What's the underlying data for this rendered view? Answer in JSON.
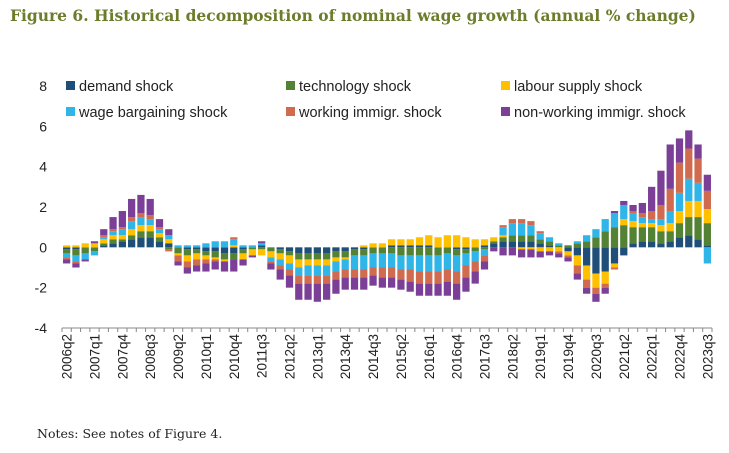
{
  "title": "Figure 6. Historical decomposition of nominal wage growth (annual % change)",
  "notes": "Notes: See notes of Figure 4.",
  "chart_data": {
    "type": "bar",
    "stacked": true,
    "ylim": [
      -4,
      8
    ],
    "y_ticks": [
      -4,
      -2,
      0,
      2,
      4,
      6,
      8
    ],
    "grid": false,
    "legend_position": "top",
    "x_tick_labels": [
      "2006q2",
      "2007q1",
      "2007q4",
      "2008q3",
      "2009q2",
      "2010q1",
      "2010q4",
      "2011q3",
      "2012q2",
      "2013q1",
      "2013q4",
      "2014q3",
      "2015q2",
      "2016q1",
      "2016q4",
      "2017q3",
      "2018q2",
      "2019q1",
      "2019q4",
      "2020q3",
      "2021q2",
      "2022q1",
      "2022q4",
      "2023q3"
    ],
    "categories": [
      "2006q2",
      "2006q3",
      "2006q4",
      "2007q1",
      "2007q2",
      "2007q3",
      "2007q4",
      "2008q1",
      "2008q2",
      "2008q3",
      "2008q4",
      "2009q1",
      "2009q2",
      "2009q3",
      "2009q4",
      "2010q1",
      "2010q2",
      "2010q3",
      "2010q4",
      "2011q1",
      "2011q2",
      "2011q3",
      "2011q4",
      "2012q1",
      "2012q2",
      "2012q3",
      "2012q4",
      "2013q1",
      "2013q2",
      "2013q3",
      "2013q4",
      "2014q1",
      "2014q2",
      "2014q3",
      "2014q4",
      "2015q1",
      "2015q2",
      "2015q3",
      "2015q4",
      "2016q1",
      "2016q2",
      "2016q3",
      "2016q4",
      "2017q1",
      "2017q2",
      "2017q3",
      "2017q4",
      "2018q1",
      "2018q2",
      "2018q3",
      "2018q4",
      "2019q1",
      "2019q2",
      "2019q3",
      "2019q4",
      "2020q1",
      "2020q2",
      "2020q3",
      "2020q4",
      "2021q1",
      "2021q2",
      "2021q3",
      "2021q4",
      "2022q1",
      "2022q2",
      "2022q3",
      "2022q4",
      "2023q1",
      "2023q2",
      "2023q3"
    ],
    "series": [
      {
        "name": "demand shock",
        "color": "#1f4e79",
        "values": [
          -0.1,
          -0.1,
          0,
          0,
          0.1,
          0.2,
          0.3,
          0.4,
          0.5,
          0.5,
          0.3,
          0.2,
          0,
          -0.1,
          -0.1,
          -0.2,
          -0.2,
          -0.3,
          -0.3,
          -0.1,
          0,
          0.1,
          0,
          -0.1,
          -0.2,
          -0.3,
          -0.3,
          -0.3,
          -0.3,
          -0.2,
          -0.2,
          -0.1,
          -0.1,
          0,
          0,
          0.1,
          0.1,
          0.1,
          0.1,
          0.1,
          0,
          0,
          -0.1,
          -0.1,
          0,
          0.1,
          0.2,
          0.3,
          0.3,
          0.3,
          0.3,
          0.2,
          0.1,
          0,
          -0.2,
          -0.4,
          -0.9,
          -1.3,
          -1.2,
          -0.8,
          -0.4,
          0.2,
          0.3,
          0.3,
          0.2,
          0.3,
          0.5,
          0.6,
          0.4,
          0.1
        ]
      },
      {
        "name": "technology shock",
        "color": "#548235",
        "values": [
          -0.2,
          -0.3,
          -0.3,
          -0.2,
          0.1,
          0.2,
          0.1,
          0.2,
          0.3,
          0.3,
          0.2,
          -0.1,
          -0.3,
          -0.3,
          -0.2,
          -0.2,
          -0.3,
          -0.3,
          -0.3,
          -0.2,
          -0.1,
          -0.1,
          -0.2,
          -0.2,
          -0.2,
          -0.3,
          -0.3,
          -0.3,
          -0.3,
          -0.3,
          -0.3,
          -0.3,
          -0.3,
          -0.3,
          -0.3,
          -0.3,
          -0.4,
          -0.4,
          -0.4,
          -0.4,
          -0.4,
          -0.3,
          -0.3,
          -0.2,
          -0.2,
          -0.1,
          0.1,
          0.2,
          0.3,
          0.3,
          0.3,
          0.2,
          0.2,
          0.1,
          0.1,
          0.2,
          0.3,
          0.5,
          0.8,
          1,
          1.1,
          0.8,
          0.7,
          0.7,
          0.6,
          0.5,
          0.7,
          0.9,
          1.1,
          1.1
        ]
      },
      {
        "name": "labour supply shock",
        "color": "#ffc000",
        "values": [
          0.1,
          0.1,
          0.2,
          0.2,
          0.2,
          0.2,
          0.2,
          0.3,
          0.3,
          0.3,
          0.2,
          0.2,
          -0.1,
          -0.3,
          -0.3,
          -0.2,
          -0.1,
          -0.1,
          0.1,
          -0.3,
          -0.3,
          -0.3,
          -0.3,
          -0.3,
          -0.4,
          -0.4,
          -0.3,
          -0.3,
          -0.3,
          -0.2,
          -0.1,
          0,
          0.1,
          0.2,
          0.2,
          0.3,
          0.3,
          0.3,
          0.4,
          0.5,
          0.5,
          0.6,
          0.6,
          0.5,
          0.4,
          0.3,
          0.2,
          0.1,
          0,
          -0.1,
          -0.1,
          -0.2,
          -0.2,
          -0.2,
          -0.2,
          -0.5,
          -0.7,
          -0.7,
          -0.6,
          -0.2,
          0.3,
          0.3,
          0.2,
          0.2,
          0.3,
          0.4,
          0.6,
          0.8,
          0.8,
          0.7
        ]
      },
      {
        "name": "wage bargaining shock",
        "color": "#2fb5e8",
        "values": [
          -0.2,
          -0.3,
          -0.3,
          -0.2,
          0.1,
          0.2,
          0.3,
          0.4,
          0.4,
          0.3,
          0.2,
          0.2,
          0.1,
          0.1,
          0.1,
          0.2,
          0.3,
          0.3,
          0.3,
          0.1,
          0.1,
          0.1,
          -0.2,
          -0.3,
          -0.3,
          -0.4,
          -0.5,
          -0.5,
          -0.5,
          -0.5,
          -0.5,
          -0.7,
          -0.7,
          -0.7,
          -0.7,
          -0.7,
          -0.7,
          -0.7,
          -0.8,
          -0.8,
          -0.8,
          -0.8,
          -0.8,
          -0.6,
          -0.5,
          -0.3,
          0,
          0.4,
          0.6,
          0.6,
          0.5,
          0.3,
          0.2,
          0.1,
          0,
          0.1,
          0.3,
          0.4,
          0.6,
          0.7,
          0.7,
          0.4,
          0.3,
          0.2,
          0.3,
          0.6,
          0.9,
          1.1,
          0.9,
          -0.8
        ]
      },
      {
        "name": "working immigr. shock",
        "color": "#d06b4f",
        "values": [
          -0.1,
          -0.1,
          0,
          0,
          0.1,
          0.1,
          0.1,
          0.2,
          0.2,
          0.2,
          0.1,
          -0.1,
          -0.3,
          -0.3,
          -0.3,
          -0.2,
          -0.1,
          0,
          0.1,
          0,
          0,
          0,
          -0.1,
          -0.2,
          -0.3,
          -0.4,
          -0.4,
          -0.4,
          -0.4,
          -0.4,
          -0.4,
          -0.4,
          -0.4,
          -0.4,
          -0.5,
          -0.5,
          -0.5,
          -0.6,
          -0.6,
          -0.6,
          -0.6,
          -0.6,
          -0.6,
          -0.6,
          -0.5,
          -0.3,
          0,
          0.1,
          0.2,
          0.2,
          0.2,
          0.1,
          0,
          -0.1,
          -0.1,
          -0.4,
          -0.4,
          -0.3,
          -0.2,
          -0.1,
          0,
          0.1,
          0.2,
          0.4,
          0.7,
          1.1,
          1.5,
          1.5,
          1.2,
          0.9
        ]
      },
      {
        "name": "non-working immigr. shock",
        "color": "#7b3f98",
        "values": [
          -0.2,
          -0.2,
          -0.1,
          0.1,
          0.3,
          0.6,
          0.8,
          0.9,
          0.9,
          0.8,
          0.4,
          0.3,
          -0.2,
          -0.3,
          -0.3,
          -0.4,
          -0.4,
          -0.5,
          -0.6,
          -0.3,
          -0.1,
          0.1,
          -0.3,
          -0.5,
          -0.6,
          -0.8,
          -0.8,
          -0.9,
          -0.8,
          -0.7,
          -0.6,
          -0.6,
          -0.6,
          -0.5,
          -0.5,
          -0.5,
          -0.5,
          -0.5,
          -0.6,
          -0.6,
          -0.6,
          -0.7,
          -0.8,
          -0.7,
          -0.6,
          -0.4,
          -0.2,
          -0.4,
          -0.4,
          -0.4,
          -0.4,
          -0.3,
          -0.2,
          -0.2,
          -0.2,
          -0.3,
          -0.3,
          -0.4,
          -0.3,
          0.1,
          0.2,
          0.3,
          0.5,
          1.2,
          1.7,
          2.2,
          1.2,
          0.9,
          0.7,
          0.8
        ]
      }
    ]
  }
}
